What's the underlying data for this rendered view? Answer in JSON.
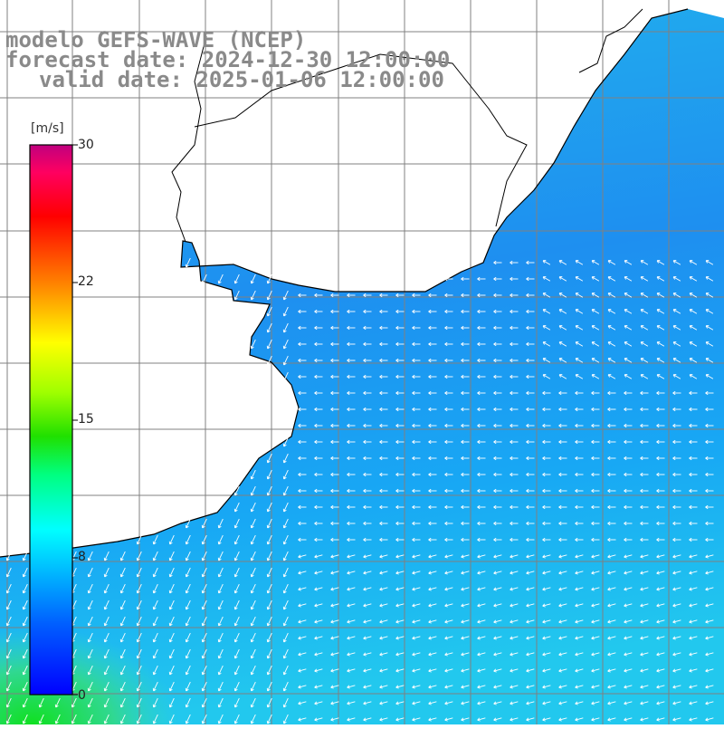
{
  "title": {
    "model": "modelo GEFS-WAVE (NCEP)",
    "forecast": "forecast date: 2024-12-30 12:00:00",
    "valid": "valid date: 2025-01-06 12:00:00"
  },
  "colorbar": {
    "unit": "[m/s]",
    "ticks": [
      "30",
      "22",
      "15",
      "8",
      "0"
    ],
    "colors": [
      "#0000ff",
      "#0090ff",
      "#00ffff",
      "#00ff40",
      "#80ff00",
      "#ffff00",
      "#ff8000",
      "#ff0000",
      "#ff0080",
      "#c0007f"
    ]
  },
  "map": {
    "land_color": "#ffffff",
    "ocean_main": "#1e90ff",
    "ocean_coast": "#18a8f0",
    "ocean_south": "#30d070",
    "grid_color": "#808080",
    "coast_color": "#000000",
    "arrow_color": "#ffffff"
  }
}
